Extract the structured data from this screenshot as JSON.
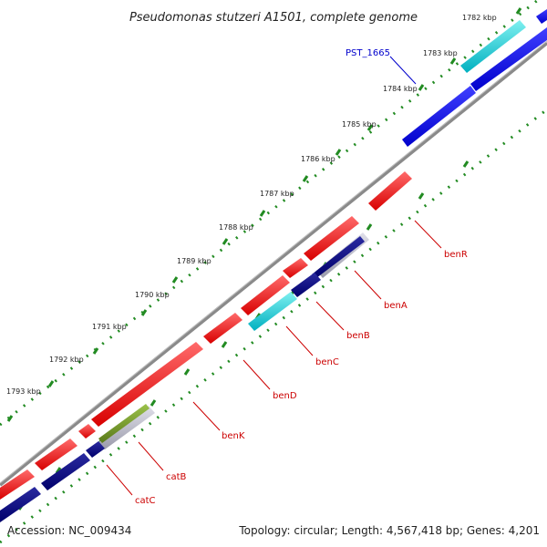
{
  "title": "Pseudomonas stutzeri A1501, complete genome",
  "footer": {
    "accession": "Accession: NC_009434",
    "topology": "Topology: circular; Length: 4,567,418 bp; Genes: 4,201"
  },
  "colors": {
    "forward_gene": "#ee0000",
    "reverse_gene_blue": "#0000dd",
    "reverse_gene_navy": "#000080",
    "reverse_gene_cyan": "#00c8c8",
    "reverse_gene_grey": "#b0b0c0",
    "reverse_gene_olive": "#6b8e23",
    "backbone": "#808080",
    "tick": "#228b22",
    "forward_label": "#cc0000",
    "reverse_label": "#0000cc"
  },
  "kbp_ticks": [
    "1782 kbp",
    "1783 kbp",
    "1784 kbp",
    "1785 kbp",
    "1786 kbp",
    "1787 kbp",
    "1788 kbp",
    "1789 kbp",
    "1790 kbp",
    "1791 kbp",
    "1792 kbp",
    "1793 kbp"
  ],
  "gene_labels": {
    "pst": "PST_1665",
    "benR": "benR",
    "benA": "benA",
    "benB": "benB",
    "benC": "benC",
    "benD": "benD",
    "benK": "benK",
    "catB": "catB",
    "catC": "catC"
  }
}
